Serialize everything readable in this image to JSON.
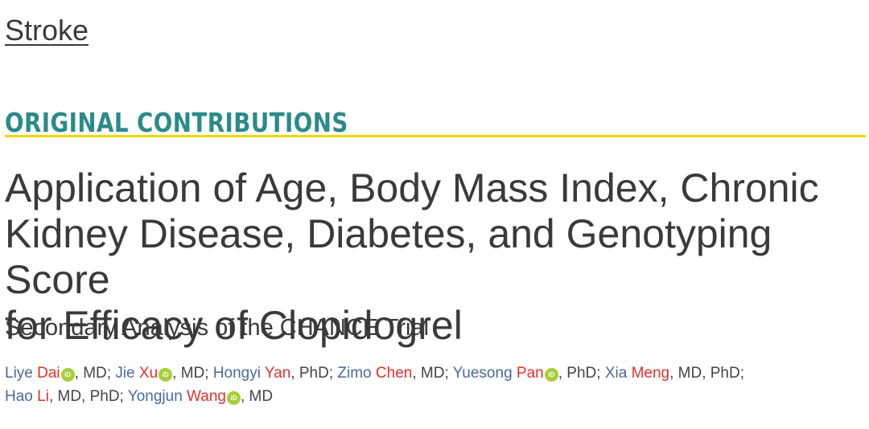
{
  "journal": "Stroke",
  "section": "ORIGINAL CONTRIBUTIONS",
  "title": {
    "lines": [
      "Application of Age, Body Mass Index, Chronic",
      "Kidney Disease, Diabetes, and Genotyping Score",
      "for Efficacy of Clopidogrel"
    ]
  },
  "subtitle": "Secondary Analysis of the CHANCE Trial",
  "orcid_icon_label": "iD",
  "colors": {
    "section": "#2b8a8a",
    "rule": "#f2d500",
    "given_name": "#4a6a9a",
    "family_name": "#e0322a",
    "orcid": "#a6ce39"
  },
  "authors": [
    {
      "given": "Liye",
      "family": "Dai",
      "orcid": true,
      "degree": ", MD; "
    },
    {
      "given": "Jie",
      "family": "Xu",
      "orcid": true,
      "degree": ", MD; "
    },
    {
      "given": "Hongyi",
      "family": "Yan",
      "orcid": false,
      "degree": ", PhD; "
    },
    {
      "given": "Zimo",
      "family": "Chen",
      "orcid": false,
      "degree": ", MD; "
    },
    {
      "given": "Yuesong",
      "family": "Pan",
      "orcid": true,
      "degree": ", PhD; "
    },
    {
      "given": "Xia",
      "family": "Meng",
      "orcid": false,
      "degree": ", MD, PhD;"
    },
    {
      "given": "Hao",
      "family": "Li",
      "orcid": false,
      "degree": ", MD, PhD; "
    },
    {
      "given": "Yongjun",
      "family": "Wang",
      "orcid": true,
      "degree": ", MD"
    }
  ]
}
